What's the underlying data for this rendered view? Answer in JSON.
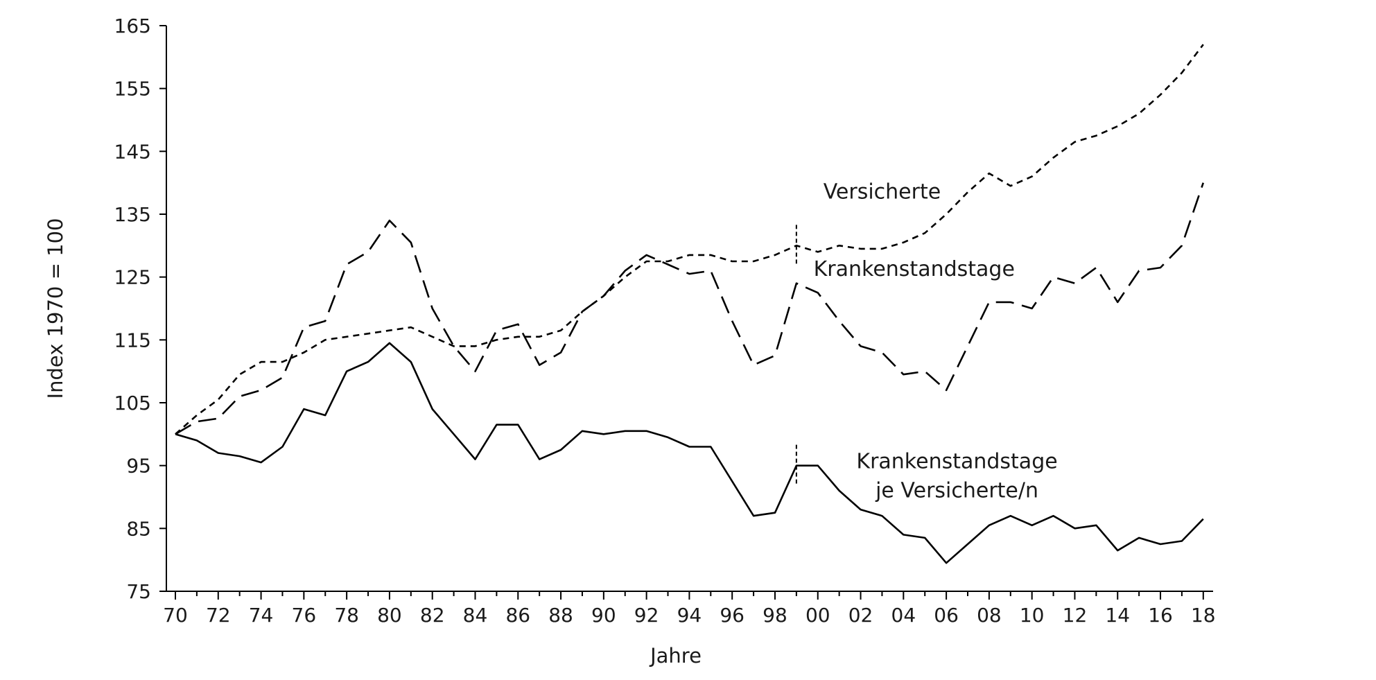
{
  "chart_data": {
    "type": "line",
    "title": "",
    "xlabel": "Jahre",
    "ylabel": "Index 1970 = 100",
    "ylim": [
      75,
      165
    ],
    "yticks": [
      75,
      85,
      95,
      105,
      115,
      125,
      135,
      145,
      155,
      165
    ],
    "xlim": [
      1970,
      2018
    ],
    "xtick_years": [
      1970,
      1972,
      1974,
      1976,
      1978,
      1980,
      1982,
      1984,
      1986,
      1988,
      1990,
      1992,
      1994,
      1996,
      1998,
      2000,
      2002,
      2004,
      2006,
      2008,
      2010,
      2012,
      2014,
      2016,
      2018
    ],
    "xtick_labels": [
      "70",
      "72",
      "74",
      "76",
      "78",
      "80",
      "82",
      "84",
      "86",
      "88",
      "90",
      "92",
      "94",
      "96",
      "98",
      "00",
      "02",
      "04",
      "06",
      "08",
      "10",
      "12",
      "14",
      "16",
      "18"
    ],
    "grid": false,
    "break_year": 1999,
    "break_markers": [
      {
        "series": "Krankenstandstage",
        "value": 130
      },
      {
        "series": "Krankenstandstage je Versicherte/n",
        "value": 95
      }
    ],
    "x": [
      1970,
      1971,
      1972,
      1973,
      1974,
      1975,
      1976,
      1977,
      1978,
      1979,
      1980,
      1981,
      1982,
      1983,
      1984,
      1985,
      1986,
      1987,
      1988,
      1989,
      1990,
      1991,
      1992,
      1993,
      1994,
      1995,
      1996,
      1997,
      1998,
      1999,
      2000,
      2001,
      2002,
      2003,
      2004,
      2005,
      2006,
      2007,
      2008,
      2009,
      2010,
      2011,
      2012,
      2013,
      2014,
      2015,
      2016,
      2017,
      2018
    ],
    "series": [
      {
        "name": "Versicherte",
        "style": "short-dash",
        "label_lines": [
          "Versicherte"
        ],
        "label_x": 2003.0,
        "label_y": 137.5,
        "values": [
          100,
          103,
          105.5,
          109.5,
          111.5,
          111.5,
          113,
          115,
          115.5,
          116,
          116.5,
          117,
          115.5,
          114,
          114,
          115,
          115.5,
          115.5,
          116.5,
          119.5,
          122,
          125,
          127.5,
          127.5,
          128.5,
          128.5,
          127.5,
          127.5,
          128.5,
          130,
          129,
          130,
          129.5,
          129.5,
          130.5,
          132,
          135,
          138.5,
          141.5,
          139.5,
          141,
          144,
          146.5,
          147.5,
          149,
          151,
          154,
          157.5,
          162
        ]
      },
      {
        "name": "Krankenstandstage",
        "style": "long-dash",
        "label_lines": [
          "Krankenstandstage"
        ],
        "label_x": 2004.5,
        "label_y": 125.2,
        "values": [
          100,
          102,
          102.5,
          106,
          107,
          109,
          117,
          118,
          127,
          129,
          134,
          130.5,
          120,
          114,
          110,
          116.5,
          117.5,
          111,
          113,
          119.5,
          122,
          126,
          128.5,
          127,
          125.5,
          126,
          118,
          111,
          112.5,
          124,
          122.5,
          118,
          114,
          113,
          109.5,
          110,
          107,
          114,
          121,
          121,
          120,
          125,
          124,
          126.5,
          121,
          126,
          126.5,
          130,
          140
        ]
      },
      {
        "name": "Krankenstandstage je Versicherte/n",
        "style": "solid",
        "label_lines": [
          "Krankenstandstage",
          "je Versicherte/n"
        ],
        "label_x": 2006.5,
        "label_y": 94.6,
        "values": [
          100,
          99,
          97,
          96.5,
          95.5,
          98,
          104,
          103,
          110,
          111.5,
          114.5,
          111.5,
          104,
          100,
          96,
          101.5,
          101.5,
          96,
          97.5,
          100.5,
          100,
          100.5,
          100.5,
          99.5,
          98,
          98,
          92.5,
          87,
          87.5,
          95,
          95,
          91,
          88,
          87,
          84,
          83.5,
          79.5,
          82.5,
          85.5,
          87,
          85.5,
          87,
          85,
          85.5,
          81.5,
          83.5,
          82.5,
          83,
          86.5
        ]
      }
    ]
  }
}
